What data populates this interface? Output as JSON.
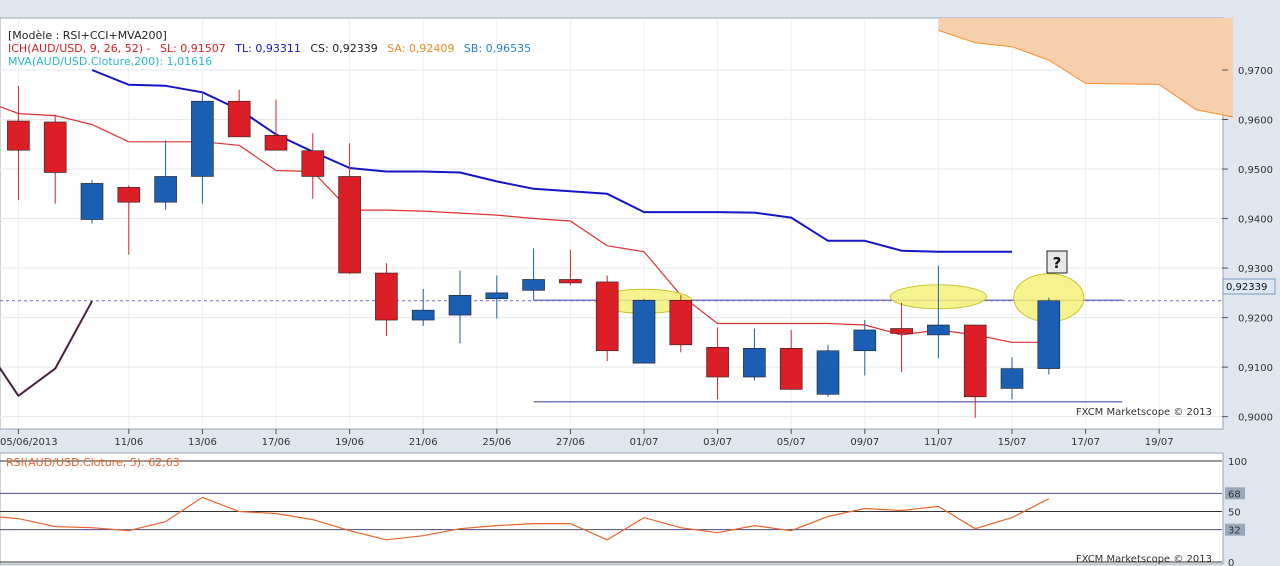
{
  "header": {
    "model": "[Modèle : RSI+CCI+MVA200]",
    "ich_label": "ICH(AUD/USD, 9, 26, 52) -",
    "sl": "SL: 0,91507",
    "tl": "TL: 0,93311",
    "cs": "CS: 0,92339",
    "sa": "SA: 0,92409",
    "sb": "SB: 0,96535",
    "mva": "MVA(AUD/USD.Cloture,200): 1,01616"
  },
  "rsi_header": "RSI(AUD/USD.Cloture, 5): 62,63",
  "credit": "FXCM Marketscope © 2013",
  "question_mark": "?",
  "colors": {
    "up": "#1a5fb4",
    "down": "#dc1f26",
    "sb_line": "#1515c8",
    "sl_line": "#e03030",
    "mva_line": "#4a2040",
    "kumo_fill": "#f7cfac",
    "kumo_edge": "#ff8c2a",
    "rsi_line": "#e8642a",
    "highlight": "#f4f07a",
    "price_tag": "#dce8f6"
  },
  "chart_data": [
    {
      "type": "candlestick",
      "title": "",
      "price_label": "0,92339",
      "y_axis": {
        "range": [
          0.8975,
          0.9805
        ],
        "ticks": [
          "0,9000",
          "0,9100",
          "0,9200",
          "0,9300",
          "0,9400",
          "0,9500",
          "0,9600",
          "0,9700"
        ]
      },
      "x_axis_ticks": [
        "05/06/2013",
        "11/06",
        "13/06",
        "17/06",
        "19/06",
        "21/06",
        "25/06",
        "27/06",
        "01/07",
        "03/07",
        "05/07",
        "09/07",
        "11/07",
        "15/07",
        "17/07",
        "19/07"
      ],
      "x_axis_tick_slots": [
        0.5,
        3.5,
        5.5,
        7.5,
        9.5,
        11.5,
        13.5,
        15.5,
        17.5,
        19.5,
        21.5,
        23.5,
        25.5,
        27.5,
        29.5,
        31.5
      ],
      "candles": [
        {
          "slot": 0.5,
          "o": 0.9597,
          "h": 0.9668,
          "l": 0.9437,
          "c": 0.9538
        },
        {
          "slot": 1.5,
          "o": 0.9595,
          "h": 0.961,
          "l": 0.943,
          "c": 0.9493
        },
        {
          "slot": 2.5,
          "o": 0.9398,
          "h": 0.9478,
          "l": 0.939,
          "c": 0.9471
        },
        {
          "slot": 3.5,
          "o": 0.9463,
          "h": 0.9467,
          "l": 0.9327,
          "c": 0.9433
        },
        {
          "slot": 4.5,
          "o": 0.9433,
          "h": 0.9558,
          "l": 0.9418,
          "c": 0.9485
        },
        {
          "slot": 5.5,
          "o": 0.9485,
          "h": 0.9652,
          "l": 0.943,
          "c": 0.9637
        },
        {
          "slot": 6.5,
          "o": 0.9637,
          "h": 0.966,
          "l": 0.9565,
          "c": 0.9565
        },
        {
          "slot": 7.5,
          "o": 0.9568,
          "h": 0.964,
          "l": 0.9538,
          "c": 0.9538
        },
        {
          "slot": 8.5,
          "o": 0.9537,
          "h": 0.9572,
          "l": 0.944,
          "c": 0.9485
        },
        {
          "slot": 9.5,
          "o": 0.9485,
          "h": 0.9552,
          "l": 0.9288,
          "c": 0.929
        },
        {
          "slot": 10.5,
          "o": 0.929,
          "h": 0.931,
          "l": 0.9163,
          "c": 0.9195
        },
        {
          "slot": 11.5,
          "o": 0.9195,
          "h": 0.9258,
          "l": 0.9183,
          "c": 0.9215
        },
        {
          "slot": 12.5,
          "o": 0.9205,
          "h": 0.9295,
          "l": 0.9148,
          "c": 0.9245
        },
        {
          "slot": 13.5,
          "o": 0.9238,
          "h": 0.9285,
          "l": 0.9198,
          "c": 0.925
        },
        {
          "slot": 14.5,
          "o": 0.9255,
          "h": 0.934,
          "l": 0.9235,
          "c": 0.9277
        },
        {
          "slot": 15.5,
          "o": 0.9277,
          "h": 0.9337,
          "l": 0.9265,
          "c": 0.927
        },
        {
          "slot": 16.5,
          "o": 0.9272,
          "h": 0.9285,
          "l": 0.9112,
          "c": 0.9133
        },
        {
          "slot": 17.5,
          "o": 0.9108,
          "h": 0.9238,
          "l": 0.9108,
          "c": 0.9235
        },
        {
          "slot": 18.5,
          "o": 0.9235,
          "h": 0.9245,
          "l": 0.913,
          "c": 0.9145
        },
        {
          "slot": 19.5,
          "o": 0.914,
          "h": 0.918,
          "l": 0.9035,
          "c": 0.908
        },
        {
          "slot": 20.5,
          "o": 0.908,
          "h": 0.9178,
          "l": 0.9073,
          "c": 0.9138
        },
        {
          "slot": 21.5,
          "o": 0.9138,
          "h": 0.9175,
          "l": 0.9055,
          "c": 0.9055
        },
        {
          "slot": 22.5,
          "o": 0.9045,
          "h": 0.9145,
          "l": 0.904,
          "c": 0.9133
        },
        {
          "slot": 23.5,
          "o": 0.9133,
          "h": 0.9195,
          "l": 0.9083,
          "c": 0.9175
        },
        {
          "slot": 24.5,
          "o": 0.9178,
          "h": 0.923,
          "l": 0.909,
          "c": 0.9168
        },
        {
          "slot": 25.5,
          "o": 0.9165,
          "h": 0.9305,
          "l": 0.9118,
          "c": 0.9185
        },
        {
          "slot": 26.5,
          "o": 0.9185,
          "h": 0.9185,
          "l": 0.8998,
          "c": 0.904
        },
        {
          "slot": 27.5,
          "o": 0.9057,
          "h": 0.912,
          "l": 0.9035,
          "c": 0.9097
        },
        {
          "slot": 28.5,
          "o": 0.9097,
          "h": 0.924,
          "l": 0.9085,
          "c": 0.9234
        }
      ],
      "tenkan_sen": [
        [
          2.5,
          0.97
        ],
        [
          3.5,
          0.967
        ],
        [
          4.5,
          0.9668
        ],
        [
          5.5,
          0.9655
        ],
        [
          6.5,
          0.962
        ],
        [
          7.5,
          0.957
        ],
        [
          8.5,
          0.9535
        ],
        [
          9.5,
          0.9502
        ],
        [
          10.5,
          0.9495
        ],
        [
          11.5,
          0.9495
        ],
        [
          12.5,
          0.9493
        ],
        [
          13.5,
          0.9475
        ],
        [
          14.5,
          0.946
        ],
        [
          15.5,
          0.9455
        ],
        [
          16.5,
          0.945
        ],
        [
          17.5,
          0.9413
        ],
        [
          18.5,
          0.9413
        ],
        [
          19.5,
          0.9413
        ],
        [
          20.5,
          0.9412
        ],
        [
          21.5,
          0.9402
        ],
        [
          22.5,
          0.9355
        ],
        [
          23.5,
          0.9355
        ],
        [
          24.5,
          0.9335
        ],
        [
          25.5,
          0.9333
        ],
        [
          26.5,
          0.9333
        ],
        [
          27.5,
          0.9333
        ]
      ],
      "kijun_sen": [
        [
          -0.5,
          0.964
        ],
        [
          0.5,
          0.9612
        ],
        [
          1.5,
          0.9608
        ],
        [
          2.5,
          0.959
        ],
        [
          3.5,
          0.9555
        ],
        [
          4.5,
          0.9555
        ],
        [
          5.5,
          0.9555
        ],
        [
          6.5,
          0.9548
        ],
        [
          7.5,
          0.9497
        ],
        [
          8.5,
          0.9495
        ],
        [
          9.5,
          0.9417
        ],
        [
          10.5,
          0.9417
        ],
        [
          11.5,
          0.9415
        ],
        [
          12.5,
          0.9411
        ],
        [
          13.5,
          0.9407
        ],
        [
          14.5,
          0.94
        ],
        [
          15.5,
          0.9395
        ],
        [
          16.5,
          0.9345
        ],
        [
          17.5,
          0.9333
        ],
        [
          18.5,
          0.9245
        ],
        [
          19.5,
          0.9188
        ],
        [
          20.5,
          0.9188
        ],
        [
          21.5,
          0.9188
        ],
        [
          22.5,
          0.9188
        ],
        [
          23.5,
          0.9185
        ],
        [
          24.5,
          0.9165
        ],
        [
          25.5,
          0.9175
        ],
        [
          26.5,
          0.9165
        ],
        [
          27.5,
          0.915
        ],
        [
          28.5,
          0.915
        ]
      ],
      "kumo_senkou_a": [
        [
          25.5,
          0.978
        ],
        [
          26.5,
          0.9755
        ],
        [
          27.5,
          0.9747
        ],
        [
          28.5,
          0.972
        ],
        [
          29.5,
          0.9673
        ],
        [
          30.5,
          0.9672
        ],
        [
          31.5,
          0.9671
        ],
        [
          32.5,
          0.962
        ],
        [
          33.5,
          0.9605
        ]
      ],
      "kumo_senkou_b": [
        [
          25.5,
          0.9805
        ],
        [
          33.5,
          0.9805
        ]
      ],
      "mva200": [
        [
          -0.5,
          0.9153
        ],
        [
          0.5,
          0.9042
        ],
        [
          1.5,
          0.9097
        ],
        [
          2.5,
          0.9233
        ]
      ],
      "support_line": {
        "from_slot": 14.5,
        "to_slot": 30.5,
        "value": 0.9235
      },
      "bottom_line": {
        "from_slot": 14.5,
        "to_slot": 30.5,
        "value": 0.903
      },
      "current_price": 0.92339,
      "highlights": [
        {
          "slot": 17.5,
          "value": 0.9233
        },
        {
          "slot": 25.5,
          "value": 0.9242
        },
        {
          "slot": 28.5,
          "value": 0.924
        }
      ]
    },
    {
      "type": "line",
      "title": "",
      "y_axis": {
        "range": [
          0,
          100
        ],
        "ticks": [
          "100",
          "68",
          "50",
          "32",
          "0"
        ],
        "tick_values": [
          100,
          68,
          50,
          32,
          0
        ]
      },
      "values": [
        [
          -0.5,
          46
        ],
        [
          0.5,
          43
        ],
        [
          1.5,
          35
        ],
        [
          2.5,
          34
        ],
        [
          3.5,
          31
        ],
        [
          4.5,
          40
        ],
        [
          5.5,
          64
        ],
        [
          6.5,
          50
        ],
        [
          7.5,
          48
        ],
        [
          8.5,
          42
        ],
        [
          9.5,
          31
        ],
        [
          10.5,
          22
        ],
        [
          11.5,
          26
        ],
        [
          12.5,
          33
        ],
        [
          13.5,
          36
        ],
        [
          14.5,
          38
        ],
        [
          15.5,
          38
        ],
        [
          16.5,
          22
        ],
        [
          17.5,
          44
        ],
        [
          18.5,
          34
        ],
        [
          19.5,
          29
        ],
        [
          20.5,
          36
        ],
        [
          21.5,
          31
        ],
        [
          22.5,
          45
        ],
        [
          23.5,
          53
        ],
        [
          24.5,
          51
        ],
        [
          25.5,
          55
        ],
        [
          26.5,
          33
        ],
        [
          27.5,
          44
        ],
        [
          28.5,
          62.63
        ]
      ]
    }
  ]
}
